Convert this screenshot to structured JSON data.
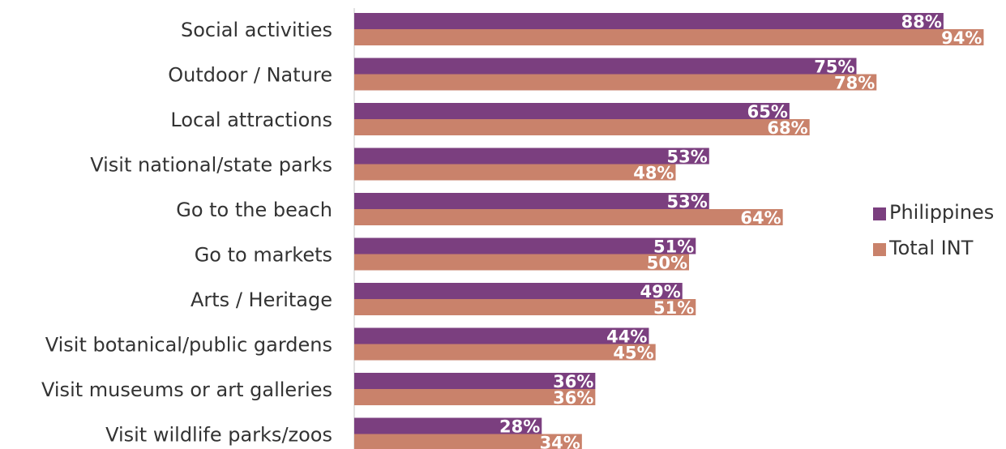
{
  "chart_data": {
    "type": "bar",
    "orientation": "horizontal",
    "categories": [
      "Social activities",
      "Outdoor / Nature",
      "Local attractions ",
      "Visit national/state parks",
      "Go to the beach",
      "Go to markets",
      "Arts / Heritage",
      "Visit botanical/public gardens",
      "Visit museums or art galleries",
      "Visit wildlife parks/zoos"
    ],
    "series": [
      {
        "name": "Philippines",
        "color": "#7b3f7f",
        "values": [
          88,
          75,
          65,
          53,
          53,
          51,
          49,
          44,
          36,
          28
        ],
        "labels": [
          "88%",
          "75%",
          "65%",
          "53%",
          "53%",
          "51%",
          "49%",
          "44%",
          "36%",
          "28%"
        ]
      },
      {
        "name": "Total INT",
        "color": "#c9826b",
        "values": [
          94,
          78,
          68,
          48,
          64,
          50,
          51,
          45,
          36,
          34
        ],
        "labels": [
          "94%",
          "78%",
          "68%",
          "48%",
          "64%",
          "50%",
          "51%",
          "45%",
          "36%",
          "34%"
        ]
      }
    ],
    "xlim": [
      0,
      100
    ],
    "grid": false,
    "legend_position": "right"
  }
}
